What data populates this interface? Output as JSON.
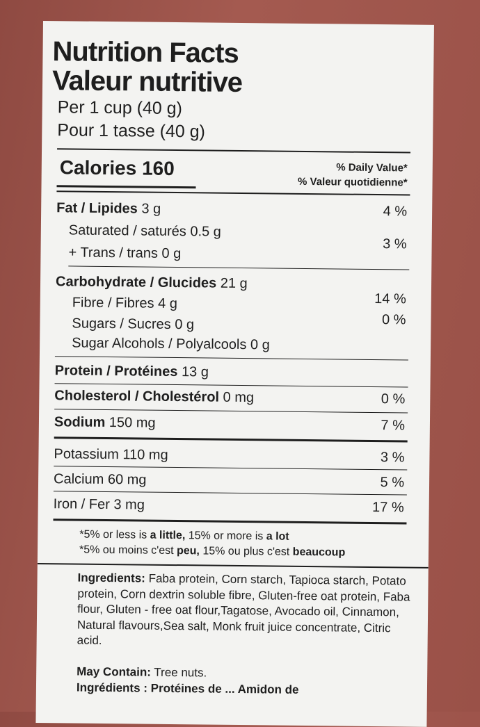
{
  "title_en": "Nutrition Facts",
  "title_fr": "Valeur nutritive",
  "serving_en": "Per 1 cup (40 g)",
  "serving_fr": "Pour 1 tasse (40 g)",
  "calories_label": "Calories",
  "calories_value": "160",
  "dv_en": "% Daily Value*",
  "dv_fr": "% Valeur quotidienne*",
  "rows": [
    {
      "label": "Fat / Lipides",
      "amount": "3 g",
      "dv": "4 %"
    },
    {
      "label": "Saturated / saturés",
      "amount": "0.5 g"
    },
    {
      "label": "+ Trans / trans",
      "amount": "0 g",
      "dv": "3 %"
    },
    {
      "label": "Carbohydrate / Glucides",
      "amount": "21 g"
    },
    {
      "label": "Fibre / Fibres",
      "amount": "4 g",
      "dv": "14 %"
    },
    {
      "label": "Sugars / Sucres",
      "amount": "0 g",
      "dv": "0 %"
    },
    {
      "label": "Sugar Alcohols / Polyalcools",
      "amount": "0 g"
    },
    {
      "label": "Protein / Protéines",
      "amount": "13 g"
    },
    {
      "label": "Cholesterol / Cholestérol",
      "amount": "0 mg",
      "dv": "0 %"
    },
    {
      "label": "Sodium",
      "amount": "150 mg",
      "dv": "7 %"
    },
    {
      "label": "Potassium",
      "amount": "110 mg",
      "dv": "3 %"
    },
    {
      "label": "Calcium",
      "amount": "60 mg",
      "dv": "5 %"
    },
    {
      "label": "Iron / Fer",
      "amount": "3 mg",
      "dv": "17 %"
    }
  ],
  "footnote_en": {
    "a": "*5% or less is ",
    "b": "a little,",
    "c": " 15% or more is ",
    "d": "a lot"
  },
  "footnote_fr": {
    "a": "*5% ou moins c'est ",
    "b": "peu,",
    "c": " 15% ou plus c'est ",
    "d": "beaucoup"
  },
  "ingredients_label": "Ingredients:",
  "ingredients": "Faba protein, Corn starch, Tapioca starch, Potato protein, Corn dextrin soluble fibre, Gluten-free oat protein, Faba flour, Gluten - free oat flour,Tagatose,  Avocado oil, Cinnamon, Natural flavours,Sea salt, Monk fruit juice concentrate, Citric acid.",
  "may_contain_label": "May Contain:",
  "may_contain": "Tree nuts.",
  "ingredients_fr_partial": "Ingrédients : Protéines de ... Amidon de"
}
